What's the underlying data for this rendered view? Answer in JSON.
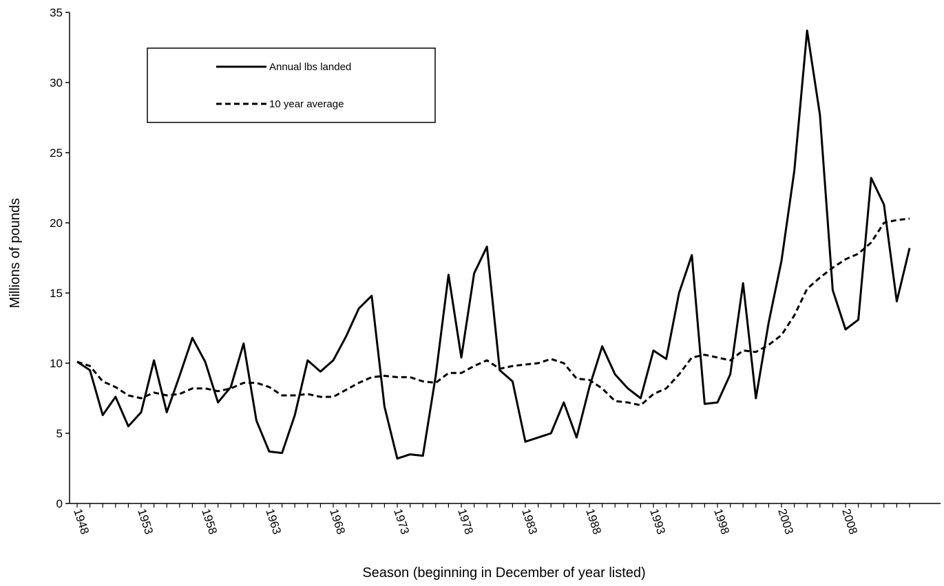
{
  "chart_data": {
    "type": "line",
    "xlabel": "Season (beginning in December of year listed)",
    "ylabel": "Millions of pounds",
    "ylim": [
      0,
      35
    ],
    "yticks": [
      0,
      5,
      10,
      15,
      20,
      25,
      30,
      35
    ],
    "xlim": [
      1948,
      2013
    ],
    "xticks": [
      1948,
      1953,
      1958,
      1963,
      1968,
      1973,
      1978,
      1983,
      1988,
      1993,
      1998,
      2003,
      2008
    ],
    "grid": false,
    "legend_position": "top-left",
    "x": [
      1948,
      1949,
      1950,
      1951,
      1952,
      1953,
      1954,
      1955,
      1956,
      1957,
      1958,
      1959,
      1960,
      1961,
      1962,
      1963,
      1964,
      1965,
      1966,
      1967,
      1968,
      1969,
      1970,
      1971,
      1972,
      1973,
      1974,
      1975,
      1976,
      1977,
      1978,
      1979,
      1980,
      1981,
      1982,
      1983,
      1984,
      1985,
      1986,
      1987,
      1988,
      1989,
      1990,
      1991,
      1992,
      1993,
      1994,
      1995,
      1996,
      1997,
      1998,
      1999,
      2000,
      2001,
      2002,
      2003,
      2004,
      2005,
      2006,
      2007,
      2008,
      2009,
      2010,
      2011,
      2012,
      2013
    ],
    "series": [
      {
        "name": "Annual lbs landed",
        "style": "solid",
        "color": "#000000",
        "values": [
          10.1,
          9.5,
          6.3,
          7.6,
          5.5,
          6.5,
          10.2,
          6.5,
          9.1,
          11.8,
          10.1,
          7.2,
          8.3,
          11.4,
          5.9,
          3.7,
          3.6,
          6.3,
          10.2,
          9.4,
          10.2,
          11.9,
          13.9,
          14.8,
          6.9,
          3.2,
          3.5,
          3.4,
          9.1,
          16.3,
          10.4,
          16.4,
          18.3,
          9.5,
          8.7,
          4.4,
          4.7,
          5.0,
          7.2,
          4.7,
          8.3,
          11.2,
          9.2,
          8.2,
          7.5,
          10.9,
          10.3,
          15.0,
          17.7,
          7.1,
          7.2,
          9.2,
          15.7,
          7.5,
          12.9,
          17.3,
          23.7,
          33.7,
          27.7,
          15.2,
          12.4,
          13.1,
          23.2,
          21.3,
          14.4,
          18.2
        ]
      },
      {
        "name": "10 year average",
        "style": "dashed",
        "color": "#000000",
        "values": [
          10.1,
          9.8,
          8.7,
          8.3,
          7.7,
          7.5,
          7.9,
          7.7,
          7.8,
          8.2,
          8.2,
          8.0,
          8.2,
          8.6,
          8.6,
          8.3,
          7.7,
          7.7,
          7.8,
          7.6,
          7.6,
          8.1,
          8.6,
          9.0,
          9.1,
          9.0,
          9.0,
          8.7,
          8.6,
          9.3,
          9.3,
          9.8,
          10.2,
          9.6,
          9.8,
          9.9,
          10.0,
          10.3,
          10.0,
          8.9,
          8.8,
          8.2,
          7.3,
          7.2,
          7.0,
          7.8,
          8.2,
          9.2,
          10.4,
          10.6,
          10.4,
          10.2,
          10.9,
          10.8,
          11.3,
          12.0,
          13.4,
          15.3,
          16.1,
          16.8,
          17.4,
          17.8,
          18.6,
          20.0,
          20.2,
          20.3
        ]
      }
    ]
  }
}
